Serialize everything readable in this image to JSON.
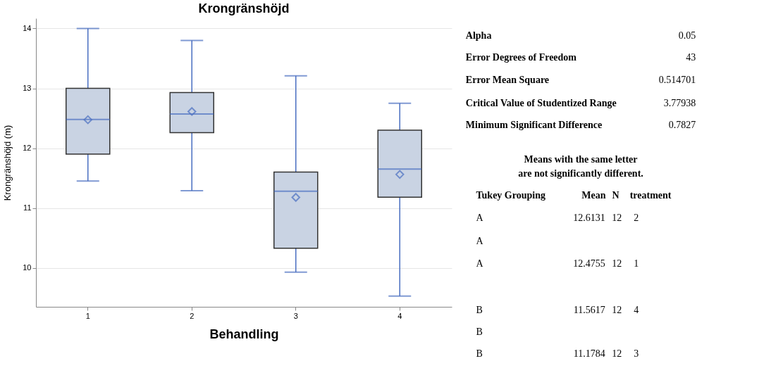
{
  "chart_data": [
    {
      "type": "box",
      "title": "Krongränshöjd",
      "xlabel": "Behandling",
      "ylabel": "Krongränshöjd (m)",
      "categories": [
        "1",
        "2",
        "3",
        "4"
      ],
      "boxes": [
        {
          "low": 11.45,
          "q1": 11.9,
          "median": 12.48,
          "q3": 13.0,
          "high": 14.0,
          "mean": 12.4755
        },
        {
          "low": 11.29,
          "q1": 12.26,
          "median": 12.57,
          "q3": 12.93,
          "high": 13.8,
          "mean": 12.6131
        },
        {
          "low": 9.93,
          "q1": 10.33,
          "median": 11.28,
          "q3": 11.6,
          "high": 13.21,
          "mean": 11.1784
        },
        {
          "low": 9.53,
          "q1": 11.18,
          "median": 11.65,
          "q3": 12.3,
          "high": 12.75,
          "mean": 11.5617
        }
      ],
      "ylim": [
        9.35,
        14.17
      ],
      "yticks": [
        10,
        11,
        12,
        13,
        14
      ],
      "grid": "y",
      "marker": "diamond"
    },
    {
      "type": "other",
      "annotations": [
        "Alpha",
        "0.05",
        "Error Degrees of Freedom",
        "43",
        "Error Mean Square",
        "0.514701",
        "Critical Value of Studentized Range",
        "3.77938",
        "Minimum Significant Difference",
        "0.7827",
        "Means with the same letter",
        "are not significantly different.",
        "Tukey Grouping",
        "Mean",
        "N",
        "treatment",
        "A",
        "12.6131",
        "12",
        "2",
        "A",
        "A",
        "12.4755",
        "12",
        "1",
        "B",
        "11.5617",
        "12",
        "4",
        "B",
        "B",
        "11.1784",
        "12",
        "3"
      ]
    }
  ]
}
